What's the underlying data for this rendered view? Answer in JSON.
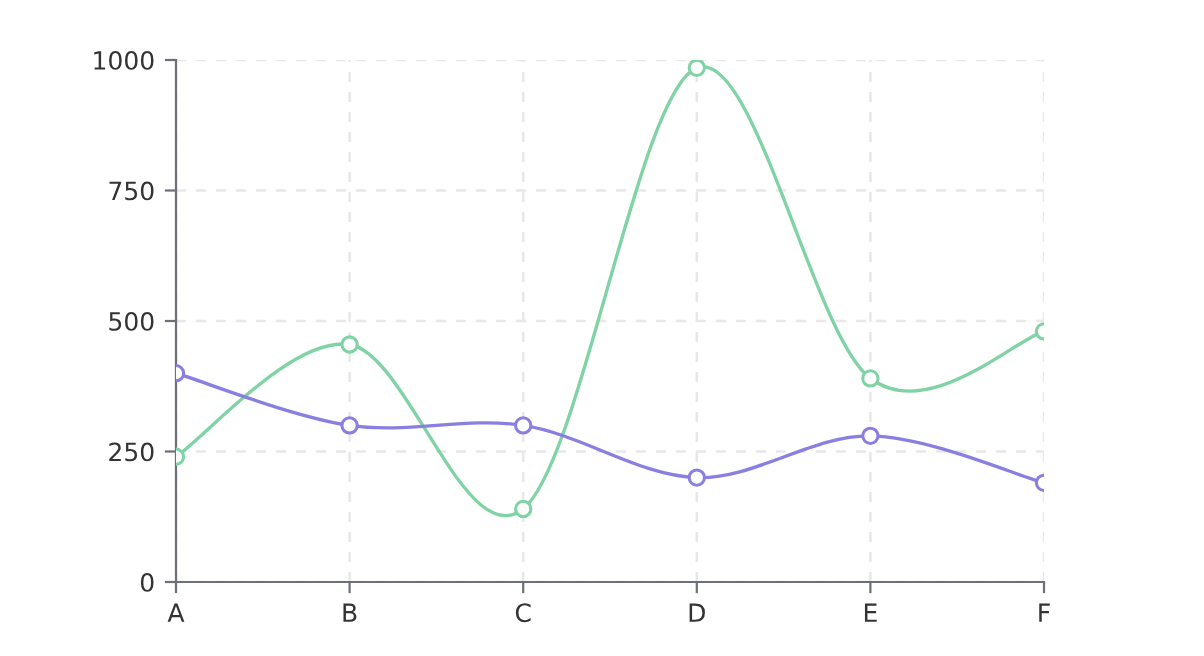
{
  "chart_data": {
    "type": "line",
    "categories": [
      "A",
      "B",
      "C",
      "D",
      "E",
      "F"
    ],
    "series": [
      {
        "color": "#7fd3a4",
        "values": [
          240,
          455,
          140,
          985,
          390,
          480
        ]
      },
      {
        "color": "#8a7ee0",
        "values": [
          400,
          300,
          300,
          200,
          280,
          190
        ]
      }
    ],
    "ylim": [
      0,
      1000
    ],
    "yticks": [
      0,
      250,
      500,
      750,
      1000
    ],
    "grid": true,
    "marker": "circle",
    "line_style": "solid",
    "legend": false
  }
}
